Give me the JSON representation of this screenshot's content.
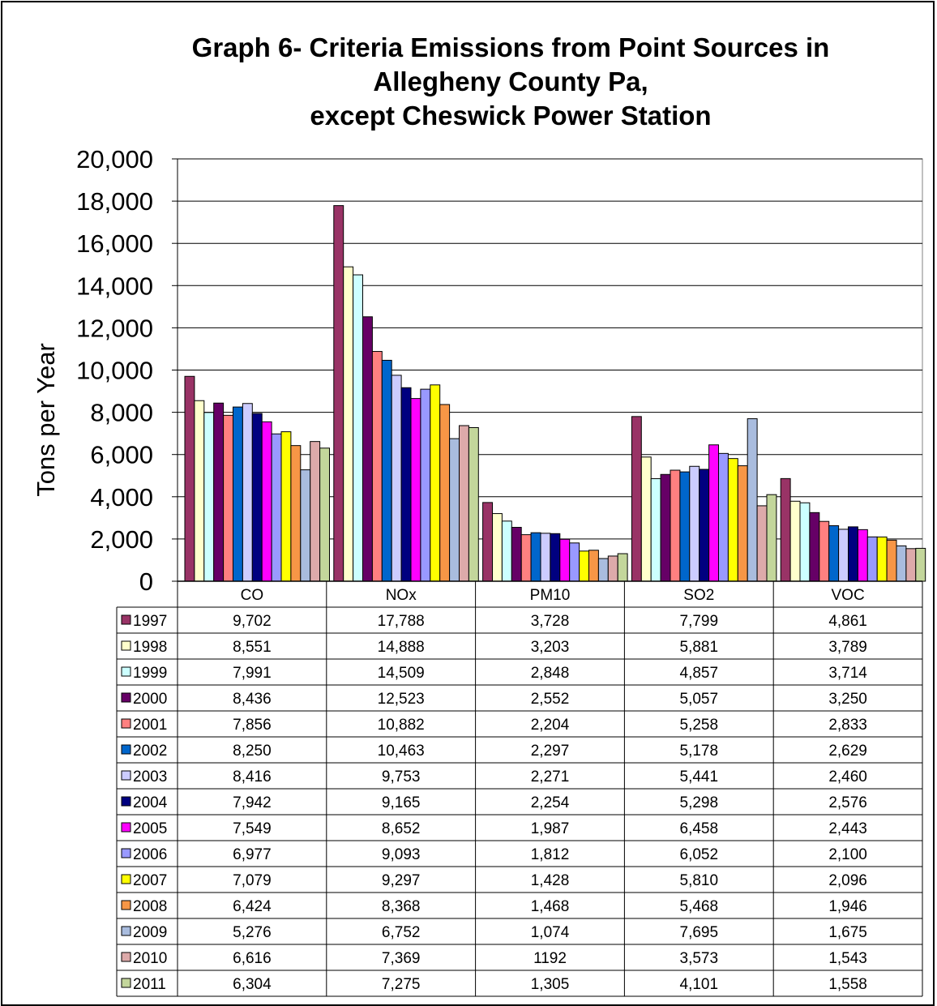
{
  "chart_data": {
    "type": "bar",
    "title": [
      "Graph 6- Criteria Emissions from Point Sources in",
      "Allegheny County Pa,",
      "except Cheswick Power Station"
    ],
    "ylabel": "Tons per Year",
    "xlabel": "",
    "ylim": [
      0,
      20000
    ],
    "yticks": [
      "0",
      "2,000",
      "4,000",
      "6,000",
      "8,000",
      "10,000",
      "12,000",
      "14,000",
      "16,000",
      "18,000",
      "20,000"
    ],
    "categories": [
      "CO",
      "NOx",
      "PM10",
      "SO2",
      "VOC"
    ],
    "grid": true,
    "legend": "data-table",
    "series": [
      {
        "name": "1997",
        "color": "#993366",
        "values": [
          9702,
          17788,
          3728,
          7799,
          4861
        ],
        "labels": [
          "9,702",
          "17,788",
          "3,728",
          "7,799",
          "4,861"
        ]
      },
      {
        "name": "1998",
        "color": "#FFFFCC",
        "values": [
          8551,
          14888,
          3203,
          5881,
          3789
        ],
        "labels": [
          "8,551",
          "14,888",
          "3,203",
          "5,881",
          "3,789"
        ]
      },
      {
        "name": "1999",
        "color": "#CCFFFF",
        "values": [
          7991,
          14509,
          2848,
          4857,
          3714
        ],
        "labels": [
          "7,991",
          "14,509",
          "2,848",
          "4,857",
          "3,714"
        ]
      },
      {
        "name": "2000",
        "color": "#660066",
        "values": [
          8436,
          12523,
          2552,
          5057,
          3250
        ],
        "labels": [
          "8,436",
          "12,523",
          "2,552",
          "5,057",
          "3,250"
        ]
      },
      {
        "name": "2001",
        "color": "#FF8080",
        "values": [
          7856,
          10882,
          2204,
          5258,
          2833
        ],
        "labels": [
          "7,856",
          "10,882",
          "2,204",
          "5,258",
          "2,833"
        ]
      },
      {
        "name": "2002",
        "color": "#0066CC",
        "values": [
          8250,
          10463,
          2297,
          5178,
          2629
        ],
        "labels": [
          "8,250",
          "10,463",
          "2,297",
          "5,178",
          "2,629"
        ]
      },
      {
        "name": "2003",
        "color": "#CCCCFF",
        "values": [
          8416,
          9753,
          2271,
          5441,
          2460
        ],
        "labels": [
          "8,416",
          "9,753",
          "2,271",
          "5,441",
          "2,460"
        ]
      },
      {
        "name": "2004",
        "color": "#000080",
        "values": [
          7942,
          9165,
          2254,
          5298,
          2576
        ],
        "labels": [
          "7,942",
          "9,165",
          "2,254",
          "5,298",
          "2,576"
        ]
      },
      {
        "name": "2005",
        "color": "#FF00FF",
        "values": [
          7549,
          8652,
          1987,
          6458,
          2443
        ],
        "labels": [
          "7,549",
          "8,652",
          "1,987",
          "6,458",
          "2,443"
        ]
      },
      {
        "name": "2006",
        "color": "#9999FF",
        "values": [
          6977,
          9093,
          1812,
          6052,
          2100
        ],
        "labels": [
          "6,977",
          "9,093",
          "1,812",
          "6,052",
          "2,100"
        ]
      },
      {
        "name": "2007",
        "color": "#FFFF00",
        "values": [
          7079,
          9297,
          1428,
          5810,
          2096
        ],
        "labels": [
          "7,079",
          "9,297",
          "1,428",
          "5,810",
          "2,096"
        ]
      },
      {
        "name": "2008",
        "color": "#F79646",
        "values": [
          6424,
          8368,
          1468,
          5468,
          1946
        ],
        "labels": [
          "6,424",
          "8,368",
          "1,468",
          "5,468",
          "1,946"
        ]
      },
      {
        "name": "2009",
        "color": "#A9BCDE",
        "values": [
          5276,
          6752,
          1074,
          7695,
          1675
        ],
        "labels": [
          "5,276",
          "6,752",
          "1,074",
          "7,695",
          "1,675"
        ]
      },
      {
        "name": "2010",
        "color": "#DDAAAA",
        "values": [
          6616,
          7369,
          1192,
          3573,
          1543
        ],
        "labels": [
          "6,616",
          "7,369",
          "1192",
          "3,573",
          "1,543"
        ]
      },
      {
        "name": "2011",
        "color": "#C3D69B",
        "values": [
          6304,
          7275,
          1305,
          4101,
          1558
        ],
        "labels": [
          "6,304",
          "7,275",
          "1,305",
          "4,101",
          "1,558"
        ]
      }
    ]
  }
}
